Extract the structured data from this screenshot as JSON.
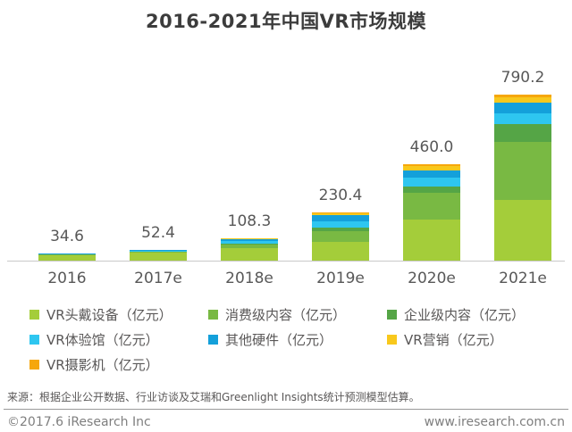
{
  "title": "2016-2021年中国VR市场规模",
  "chart_data": {
    "type": "bar",
    "stacked": true,
    "title": "2016-2021年中国VR市场规模",
    "categories": [
      "2016",
      "2017e",
      "2018e",
      "2019e",
      "2020e",
      "2021e"
    ],
    "totals": [
      34.6,
      52.4,
      108.3,
      230.4,
      460.0,
      790.2
    ],
    "total_labels": [
      "34.6",
      "52.4",
      "108.3",
      "230.4",
      "460.0",
      "790.2"
    ],
    "unit": "亿元",
    "series": [
      {
        "name": "VR头戴设备（亿元）",
        "color": "#a4cd3a",
        "values": [
          26,
          37,
          58,
          90,
          195,
          289
        ]
      },
      {
        "name": "消费级内容（亿元）",
        "color": "#79b943",
        "values": [
          2,
          4,
          18,
          52,
          128,
          276
        ]
      },
      {
        "name": "企业级内容（亿元）",
        "color": "#55a546",
        "values": [
          0.5,
          1,
          4,
          14,
          31,
          85
        ]
      },
      {
        "name": "VR体验馆（亿元）",
        "color": "#2ec6f0",
        "values": [
          3.5,
          5,
          12,
          33,
          40,
          52
        ]
      },
      {
        "name": "其他硬件（亿元）",
        "color": "#14a0da",
        "values": [
          1.6,
          3,
          9,
          27,
          36,
          51
        ]
      },
      {
        "name": "VR营销（亿元）",
        "color": "#f8c81c",
        "values": [
          0.6,
          1.4,
          4.3,
          9.4,
          19,
          24
        ]
      },
      {
        "name": "VR摄影机（亿元）",
        "color": "#f6a70c",
        "values": [
          0.4,
          1,
          3,
          5,
          11,
          13.2
        ]
      }
    ],
    "ylim": [
      0,
      830
    ],
    "grid": false,
    "legend_position": "bottom"
  },
  "source_note": "来源：根据企业公开数据、行业访谈及艾瑞和Greenlight Insights统计预测模型估算。",
  "footer": {
    "copyright": "©2017.6 iResearch Inc",
    "website": "www.iresearch.com.cn"
  }
}
